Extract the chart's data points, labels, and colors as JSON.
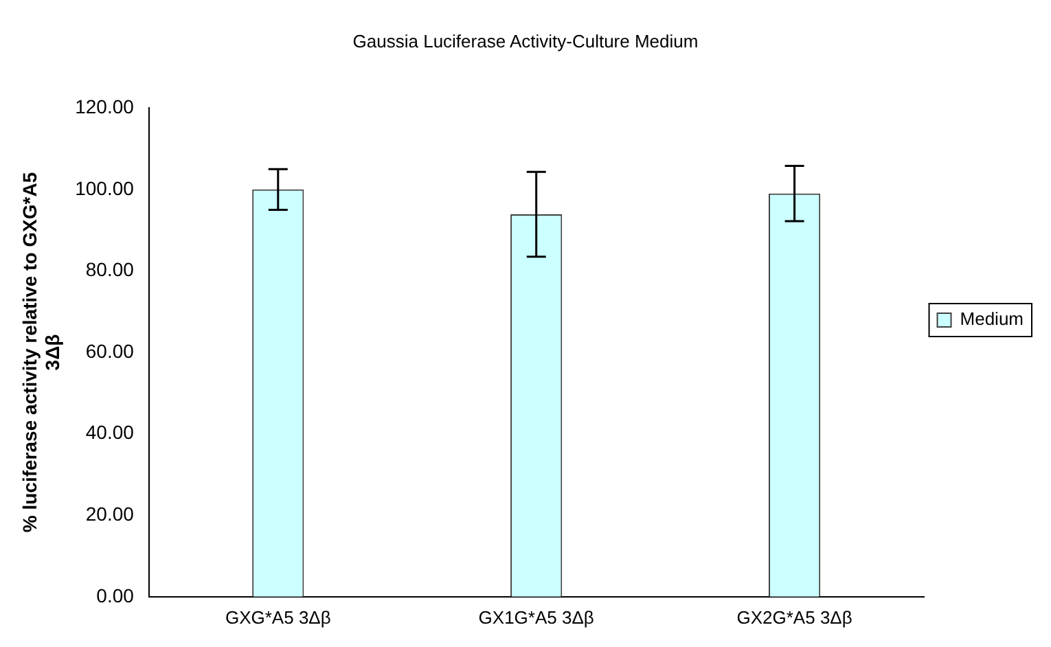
{
  "chart_data": {
    "type": "bar",
    "title": "Gaussia Luciferase Activity-Culture Medium",
    "ylabel": "% luciferase activity relative to GXG*A5 3Δβ",
    "categories": [
      "GXG*A5 3Δβ",
      "GX1G*A5 3Δβ",
      "GX2G*A5 3Δβ"
    ],
    "series": [
      {
        "name": "Medium",
        "color": "#ccffff",
        "values": [
          100,
          93.9,
          99
        ],
        "errors": [
          5,
          10.4,
          6.8
        ]
      }
    ],
    "ylim": [
      0,
      120
    ],
    "yticks": [
      {
        "value": 0,
        "label": "0.00"
      },
      {
        "value": 20,
        "label": "20.00"
      },
      {
        "value": 40,
        "label": "40.00"
      },
      {
        "value": 60,
        "label": "60.00"
      },
      {
        "value": 80,
        "label": "80.00"
      },
      {
        "value": 100,
        "label": "100.00"
      },
      {
        "value": 120,
        "label": "120.00"
      }
    ],
    "grid": false,
    "legend": "right"
  }
}
